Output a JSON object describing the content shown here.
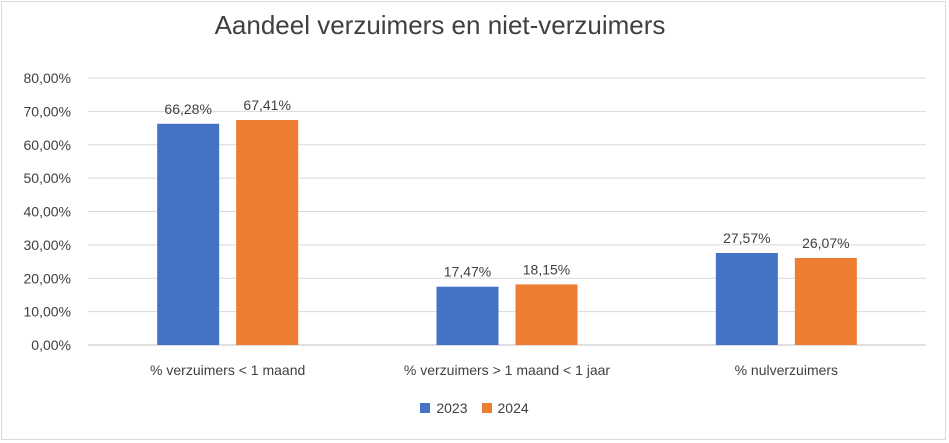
{
  "chart_data": {
    "type": "bar",
    "title": "Aandeel verzuimers en niet-verzuimers",
    "categories": [
      "% verzuimers < 1 maand",
      "% verzuimers > 1 maand < 1 jaar",
      "% nulverzuimers"
    ],
    "series": [
      {
        "name": "2023",
        "color": "#4472C4",
        "values": [
          66.28,
          17.47,
          27.57
        ],
        "labels": [
          "66,28%",
          "17,47%",
          "27,57%"
        ]
      },
      {
        "name": "2024",
        "color": "#ED7D31",
        "values": [
          67.41,
          18.15,
          26.07
        ],
        "labels": [
          "67,41%",
          "18,15%",
          "26,07%"
        ]
      }
    ],
    "ylim": [
      0,
      80
    ],
    "yticks": [
      "0,00%",
      "10,00%",
      "20,00%",
      "30,00%",
      "40,00%",
      "50,00%",
      "60,00%",
      "70,00%",
      "80,00%"
    ],
    "grid": true,
    "legend_position": "bottom"
  }
}
